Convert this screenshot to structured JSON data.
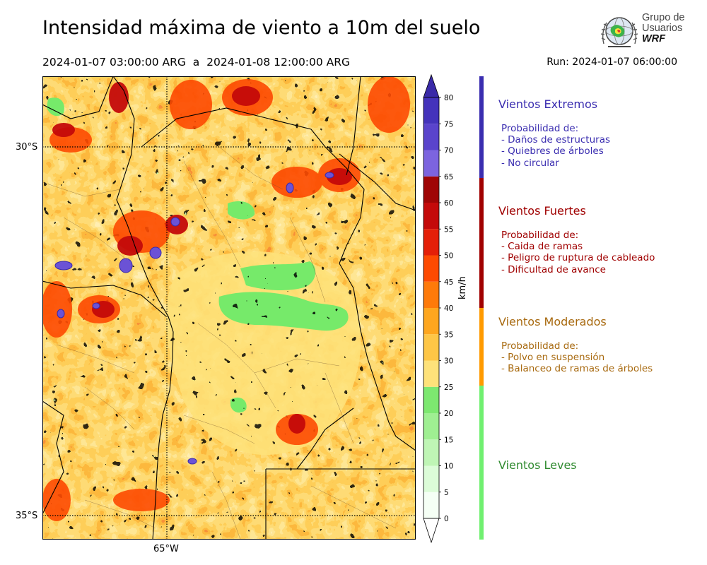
{
  "title": "Intensidad máxima de viento a 10m del suelo",
  "period": "2024-01-07 03:00:00 ARG  a  2024-01-08 12:00:00 ARG",
  "run": "Run: 2024-01-07 06:00:00",
  "logo": {
    "line1": "Grupo de",
    "line2": "Usuarios",
    "line3": "WRF"
  },
  "map": {
    "lat_labels": [
      "30°S",
      "35°S"
    ],
    "lon_labels": [
      "65°W"
    ]
  },
  "colorbar": {
    "unit": "km/h",
    "ticks": [
      "0",
      "5",
      "10",
      "15",
      "20",
      "25",
      "30",
      "35",
      "40",
      "45",
      "50",
      "55",
      "60",
      "65",
      "70",
      "75",
      "80"
    ],
    "colors": [
      "#f5fff5",
      "#dcfcd8",
      "#bff5b5",
      "#9fef92",
      "#7de870",
      "#fee27a",
      "#fec646",
      "#fea61e",
      "#fe7a0a",
      "#fd4a02",
      "#e41f08",
      "#c40a0a",
      "#9f0505",
      "#7c64df",
      "#5a44cc",
      "#4433bb"
    ],
    "over_color": "#3a2aa8",
    "under_color": "#ffffff"
  },
  "categories": [
    {
      "title": "Vientos Extremos",
      "color": "#3a2db0",
      "text_color": "#3a2db0",
      "lines": [
        "Probabilidad de:",
        "- Daños de estructuras",
        "- Quiebres de árboles",
        "- No circular"
      ]
    },
    {
      "title": "Vientos Fuertes",
      "color": "#a00000",
      "text_color": "#a00000",
      "lines": [
        "Probabilidad de:",
        "- Caida de ramas",
        "- Peligro de ruptura de cableado",
        "- Dificultad de avance"
      ]
    },
    {
      "title": "Vientos Moderados",
      "color": "#ff9a00",
      "text_color": "#a86a10",
      "lines": [
        "Probabilidad de:",
        "- Polvo en suspensión",
        "- Balanceo de ramas de árboles"
      ]
    },
    {
      "title": "Vientos Leves",
      "color": "#70f070",
      "text_color": "#2f8a2f",
      "lines": []
    }
  ]
}
